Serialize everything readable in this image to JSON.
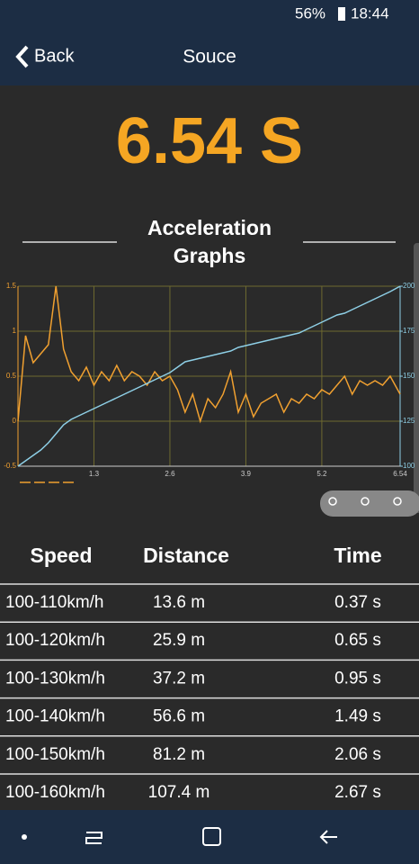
{
  "status_bar": {
    "battery": "56%",
    "time": "18:44"
  },
  "header": {
    "back": "Back",
    "title": "Souce"
  },
  "result": "6.54 S",
  "section_title": [
    "Acceleration",
    "Graphs"
  ],
  "chart_data": {
    "type": "line",
    "x": [
      0,
      0.13,
      0.26,
      0.39,
      0.52,
      0.65,
      0.78,
      0.91,
      1.04,
      1.17,
      1.3,
      1.43,
      1.56,
      1.69,
      1.82,
      1.95,
      2.08,
      2.21,
      2.34,
      2.47,
      2.6,
      2.73,
      2.86,
      2.99,
      3.12,
      3.25,
      3.38,
      3.51,
      3.64,
      3.77,
      3.9,
      4.03,
      4.16,
      4.29,
      4.42,
      4.55,
      4.68,
      4.81,
      4.94,
      5.07,
      5.2,
      5.33,
      5.46,
      5.59,
      5.72,
      5.85,
      5.98,
      6.11,
      6.24,
      6.37,
      6.54
    ],
    "xlim": [
      0,
      6.54
    ],
    "xticks": [
      1.3,
      2.6,
      3.9,
      5.2,
      6.54
    ],
    "ylim": [
      -0.5,
      1.5
    ],
    "yticks": [
      -0.5,
      0,
      0.5,
      1,
      1.5
    ],
    "y2lim": [
      100,
      200
    ],
    "y2ticks": [
      100,
      125,
      150,
      175,
      200
    ],
    "grid": true,
    "series": [
      {
        "color": "#f0a030",
        "values": [
          0,
          0.95,
          0.65,
          0.75,
          0.85,
          1.5,
          0.8,
          0.55,
          0.45,
          0.6,
          0.4,
          0.55,
          0.45,
          0.62,
          0.45,
          0.55,
          0.5,
          0.4,
          0.55,
          0.45,
          0.5,
          0.35,
          0.1,
          0.3,
          0.0,
          0.25,
          0.15,
          0.3,
          0.55,
          0.1,
          0.3,
          0.05,
          0.2,
          0.25,
          0.3,
          0.1,
          0.25,
          0.2,
          0.3,
          0.25,
          0.35,
          0.3,
          0.4,
          0.5,
          0.3,
          0.45,
          0.4,
          0.45,
          0.4,
          0.5,
          0.3
        ]
      },
      {
        "color": "#8ecfe6",
        "axis": "y2",
        "values": [
          100,
          103,
          106,
          109,
          113,
          118,
          123,
          126,
          128,
          130,
          132,
          134,
          136,
          138,
          140,
          142,
          144,
          146,
          148,
          150,
          152,
          155,
          158,
          159,
          160,
          161,
          162,
          163,
          164,
          166,
          167,
          168,
          169,
          170,
          171,
          172,
          173,
          174,
          176,
          178,
          180,
          182,
          184,
          185,
          187,
          189,
          191,
          193,
          195,
          197,
          200
        ]
      }
    ]
  },
  "table": {
    "header": [
      "Speed",
      "Distance",
      "Time"
    ],
    "rows": [
      [
        "100-110km/h",
        "13.6 m",
        "0.37 s"
      ],
      [
        "100-120km/h",
        "25.9 m",
        "0.65 s"
      ],
      [
        "100-130km/h",
        "37.2 m",
        "0.95 s"
      ],
      [
        "100-140km/h",
        "56.6 m",
        "1.49 s"
      ],
      [
        "100-150km/h",
        "81.2 m",
        "2.06 s"
      ],
      [
        "100-160km/h",
        "107.4 m",
        "2.67 s"
      ]
    ]
  }
}
